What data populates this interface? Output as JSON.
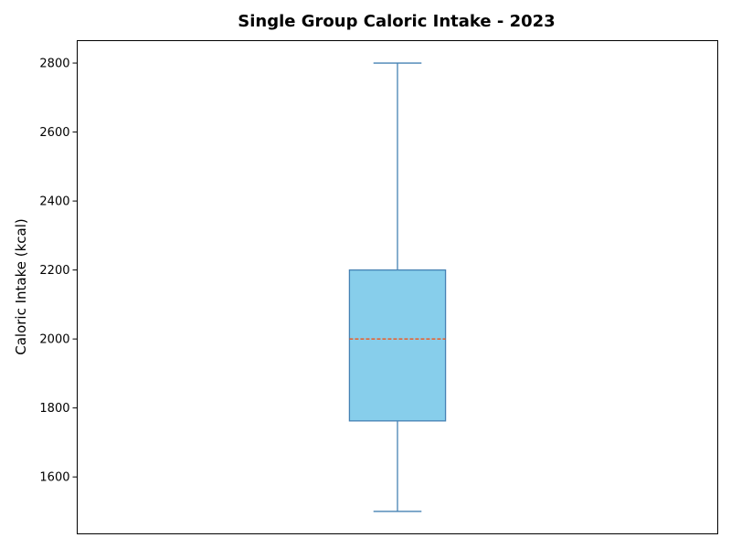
{
  "chart_data": {
    "type": "box",
    "title": "Single Group Caloric Intake - 2023",
    "xlabel": "",
    "ylabel": "Caloric Intake (kcal)",
    "ylim": [
      1435,
      2865
    ],
    "yticks": [
      1600,
      1800,
      2000,
      2200,
      2400,
      2600,
      2800
    ],
    "ytick_labels": [
      "1600",
      "1800",
      "2000",
      "2200",
      "2400",
      "2600",
      "2800"
    ],
    "grid": false,
    "boxes": [
      {
        "whisker_low": 1500,
        "q1": 1762.5,
        "median": 2000,
        "q3": 2200,
        "whisker_high": 2800
      }
    ],
    "colors": {
      "box_fill": "#87ceeb",
      "box_edge": "#4682b4",
      "whisker": "#4682b4",
      "median": "#ff4500",
      "axes": "#000000"
    }
  }
}
